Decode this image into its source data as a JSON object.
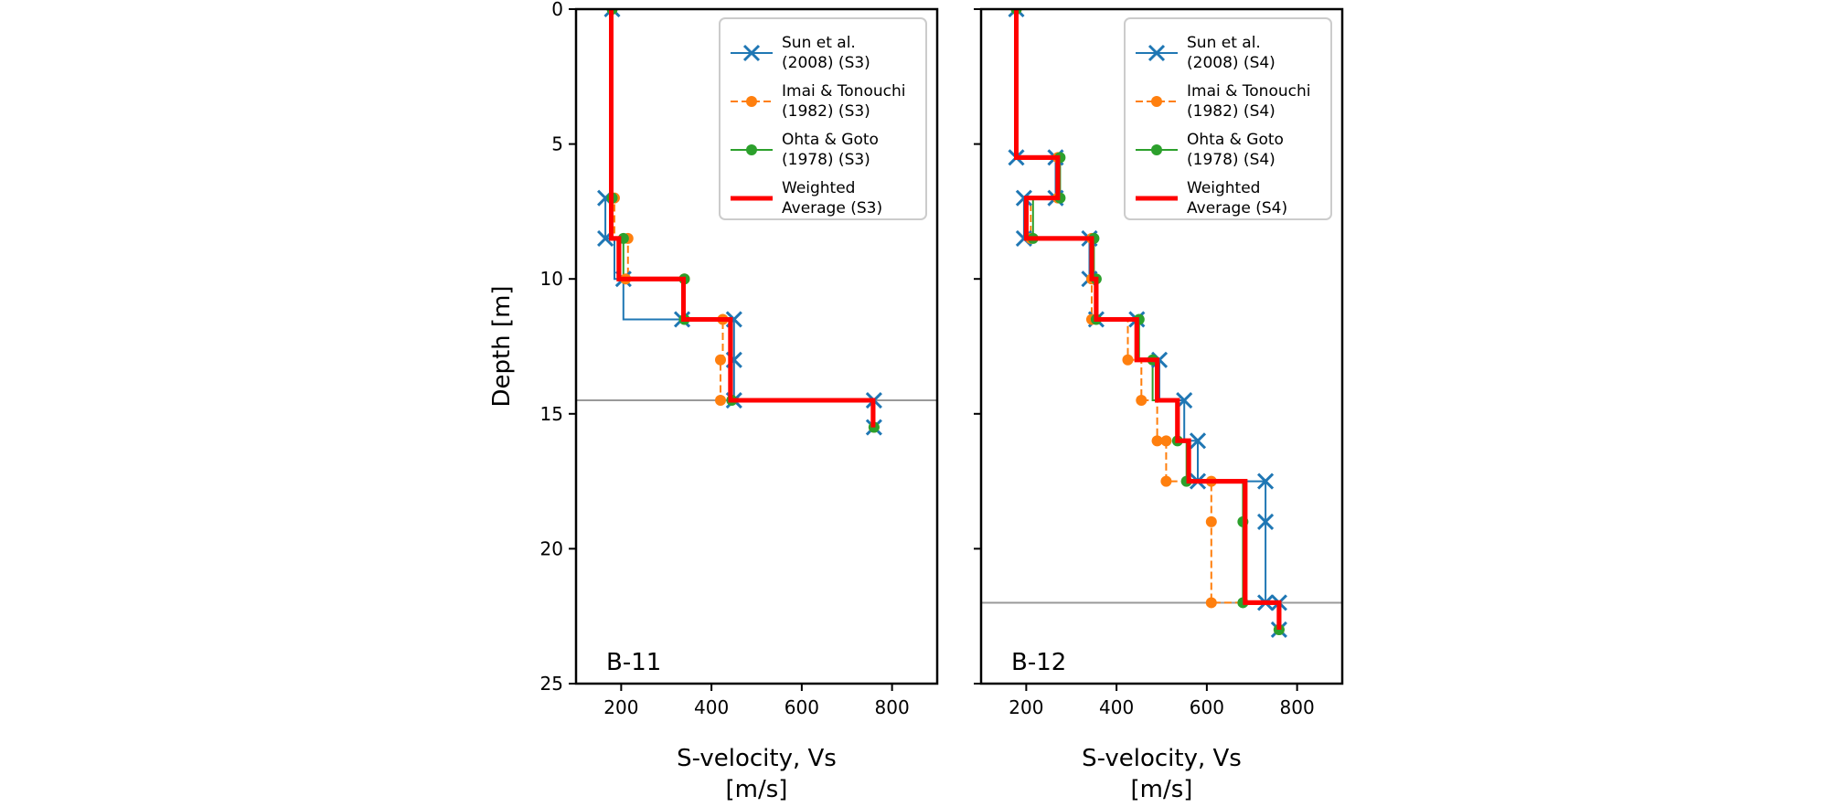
{
  "chart_data": [
    {
      "type": "line",
      "panel_label": "B-11",
      "xlabel": [
        "S-velocity, Vs",
        "[m/s]"
      ],
      "ylabel": "Depth [m]",
      "xlim": [
        100,
        900
      ],
      "ylim": [
        25,
        0
      ],
      "xticks": [
        200,
        400,
        600,
        800
      ],
      "yticks": [
        0,
        5,
        10,
        15,
        20,
        25
      ],
      "hline": 14.5,
      "legend_position": "top-right",
      "series": [
        {
          "name": "Sun et al.",
          "name2": "(2008) (S3)",
          "color": "#1f77b4",
          "style": "solid",
          "marker": "x",
          "x": [
            180,
            180,
            165,
            165,
            185,
            185,
            205,
            205,
            335,
            335,
            450,
            450,
            450,
            760,
            760
          ],
          "y": [
            0,
            7,
            7,
            8.5,
            8.5,
            10,
            10,
            11.5,
            11.5,
            11.5,
            11.5,
            13,
            14.5,
            14.5,
            15.5
          ],
          "markers": [
            [
              180,
              0
            ],
            [
              165,
              7
            ],
            [
              165,
              8.5
            ],
            [
              205,
              10
            ],
            [
              335,
              11.5
            ],
            [
              450,
              11.5
            ],
            [
              450,
              13
            ],
            [
              450,
              14.5
            ],
            [
              760,
              14.5
            ],
            [
              760,
              15.5
            ]
          ]
        },
        {
          "name": "Imai & Tonouchi",
          "name2": "(1982) (S3)",
          "color": "#ff7f0e",
          "style": "dashed",
          "marker": "dot",
          "x": [
            180,
            180,
            185,
            185,
            215,
            215,
            210,
            210,
            340,
            340,
            425,
            425,
            420,
            420,
            760,
            760
          ],
          "y": [
            0,
            7,
            7,
            8.5,
            8.5,
            10,
            10,
            10,
            10,
            11.5,
            11.5,
            13,
            13,
            14.5,
            14.5,
            15.5
          ],
          "markers": [
            [
              180,
              0
            ],
            [
              185,
              7
            ],
            [
              215,
              8.5
            ],
            [
              210,
              10
            ],
            [
              340,
              10
            ],
            [
              425,
              11.5
            ],
            [
              420,
              13
            ],
            [
              420,
              14.5
            ],
            [
              760,
              15.5
            ]
          ]
        },
        {
          "name": "Ohta & Goto",
          "name2": "(1978) (S3)",
          "color": "#2ca02c",
          "style": "solid",
          "marker": "dot",
          "x": [
            180,
            180,
            180,
            180,
            205,
            205,
            340,
            340,
            445,
            445,
            760,
            760
          ],
          "y": [
            0,
            7,
            7,
            8.5,
            8.5,
            10,
            10,
            11.5,
            11.5,
            14.5,
            14.5,
            15.5
          ],
          "markers": [
            [
              180,
              0
            ],
            [
              180,
              7
            ],
            [
              205,
              8.5
            ],
            [
              340,
              10
            ],
            [
              340,
              11.5
            ],
            [
              445,
              14.5
            ],
            [
              760,
              15.5
            ]
          ]
        },
        {
          "name": "Weighted",
          "name2": "Average (S3)",
          "color": "#ff0000",
          "style": "thick",
          "marker": "none",
          "x": [
            178,
            178,
            178,
            195,
            195,
            338,
            338,
            442,
            442,
            758,
            758
          ],
          "y": [
            0,
            7,
            8.5,
            8.5,
            10,
            10,
            11.5,
            11.5,
            14.5,
            14.5,
            15.5
          ],
          "markers": []
        }
      ]
    },
    {
      "type": "line",
      "panel_label": "B-12",
      "xlabel": [
        "S-velocity, Vs",
        "[m/s]"
      ],
      "ylabel": "",
      "xlim": [
        100,
        900
      ],
      "ylim": [
        25,
        0
      ],
      "xticks": [
        200,
        400,
        600,
        800
      ],
      "yticks": [
        0,
        5,
        10,
        15,
        20,
        25
      ],
      "hline": 22,
      "legend_position": "top-right",
      "series": [
        {
          "name": "Sun et al.",
          "name2": "(2008) (S4)",
          "color": "#1f77b4",
          "style": "solid",
          "marker": "x",
          "x": [
            178,
            178,
            265,
            265,
            195,
            195,
            340,
            340,
            355,
            355,
            445,
            445,
            495,
            495,
            550,
            550,
            580,
            580,
            730,
            730,
            760,
            760
          ],
          "y": [
            0,
            5.5,
            5.5,
            7,
            7,
            8.5,
            8.5,
            10,
            10,
            11.5,
            11.5,
            13,
            13,
            14.5,
            14.5,
            16,
            16,
            17.5,
            17.5,
            22,
            22,
            23
          ],
          "markers": [
            [
              178,
              0
            ],
            [
              178,
              5.5
            ],
            [
              265,
              5.5
            ],
            [
              265,
              7
            ],
            [
              195,
              7
            ],
            [
              195,
              8.5
            ],
            [
              340,
              8.5
            ],
            [
              340,
              10
            ],
            [
              355,
              11.5
            ],
            [
              445,
              11.5
            ],
            [
              495,
              13
            ],
            [
              550,
              14.5
            ],
            [
              580,
              16
            ],
            [
              580,
              17.5
            ],
            [
              730,
              17.5
            ],
            [
              730,
              19
            ],
            [
              730,
              22
            ],
            [
              760,
              22
            ],
            [
              760,
              23
            ]
          ]
        },
        {
          "name": "Imai & Tonouchi",
          "name2": "(1982) (S4)",
          "color": "#ff7f0e",
          "style": "dashed",
          "marker": "dot",
          "x": [
            178,
            178,
            270,
            270,
            210,
            210,
            345,
            345,
            345,
            345,
            425,
            425,
            455,
            455,
            490,
            490,
            510,
            510,
            610,
            610,
            760,
            760
          ],
          "y": [
            0,
            5.5,
            5.5,
            7,
            7,
            8.5,
            8.5,
            10,
            10,
            11.5,
            11.5,
            13,
            13,
            14.5,
            14.5,
            16,
            16,
            17.5,
            17.5,
            22,
            22,
            23
          ],
          "markers": [
            [
              178,
              0
            ],
            [
              270,
              5.5
            ],
            [
              270,
              7
            ],
            [
              210,
              8.5
            ],
            [
              345,
              8.5
            ],
            [
              345,
              10
            ],
            [
              345,
              11.5
            ],
            [
              425,
              13
            ],
            [
              455,
              14.5
            ],
            [
              490,
              16
            ],
            [
              510,
              16
            ],
            [
              510,
              17.5
            ],
            [
              610,
              17.5
            ],
            [
              610,
              19
            ],
            [
              610,
              22
            ],
            [
              760,
              23
            ]
          ]
        },
        {
          "name": "Ohta & Goto",
          "name2": "(1978) (S4)",
          "color": "#2ca02c",
          "style": "solid",
          "marker": "dot",
          "x": [
            178,
            178,
            275,
            275,
            215,
            215,
            350,
            350,
            355,
            355,
            450,
            450,
            480,
            480,
            535,
            535,
            555,
            555,
            680,
            680,
            760,
            760
          ],
          "y": [
            0,
            5.5,
            5.5,
            7,
            7,
            8.5,
            8.5,
            10,
            10,
            11.5,
            11.5,
            13,
            13,
            14.5,
            14.5,
            16,
            16,
            17.5,
            17.5,
            22,
            22,
            23
          ],
          "markers": [
            [
              178,
              0
            ],
            [
              275,
              5.5
            ],
            [
              275,
              7
            ],
            [
              215,
              8.5
            ],
            [
              350,
              8.5
            ],
            [
              355,
              10
            ],
            [
              355,
              11.5
            ],
            [
              450,
              11.5
            ],
            [
              480,
              13
            ],
            [
              535,
              16
            ],
            [
              555,
              17.5
            ],
            [
              680,
              19
            ],
            [
              680,
              22
            ],
            [
              760,
              23
            ]
          ]
        },
        {
          "name": "Weighted",
          "name2": "Average (S4)",
          "color": "#ff0000",
          "style": "thick",
          "marker": "none",
          "x": [
            178,
            178,
            270,
            270,
            200,
            200,
            345,
            345,
            355,
            355,
            445,
            445,
            490,
            490,
            535,
            535,
            560,
            560,
            685,
            685,
            760,
            760
          ],
          "y": [
            0,
            5.5,
            5.5,
            7,
            7,
            8.5,
            8.5,
            10,
            10,
            11.5,
            11.5,
            13,
            13,
            14.5,
            14.5,
            16,
            16,
            17.5,
            17.5,
            22,
            22,
            23
          ],
          "markers": []
        }
      ]
    }
  ]
}
